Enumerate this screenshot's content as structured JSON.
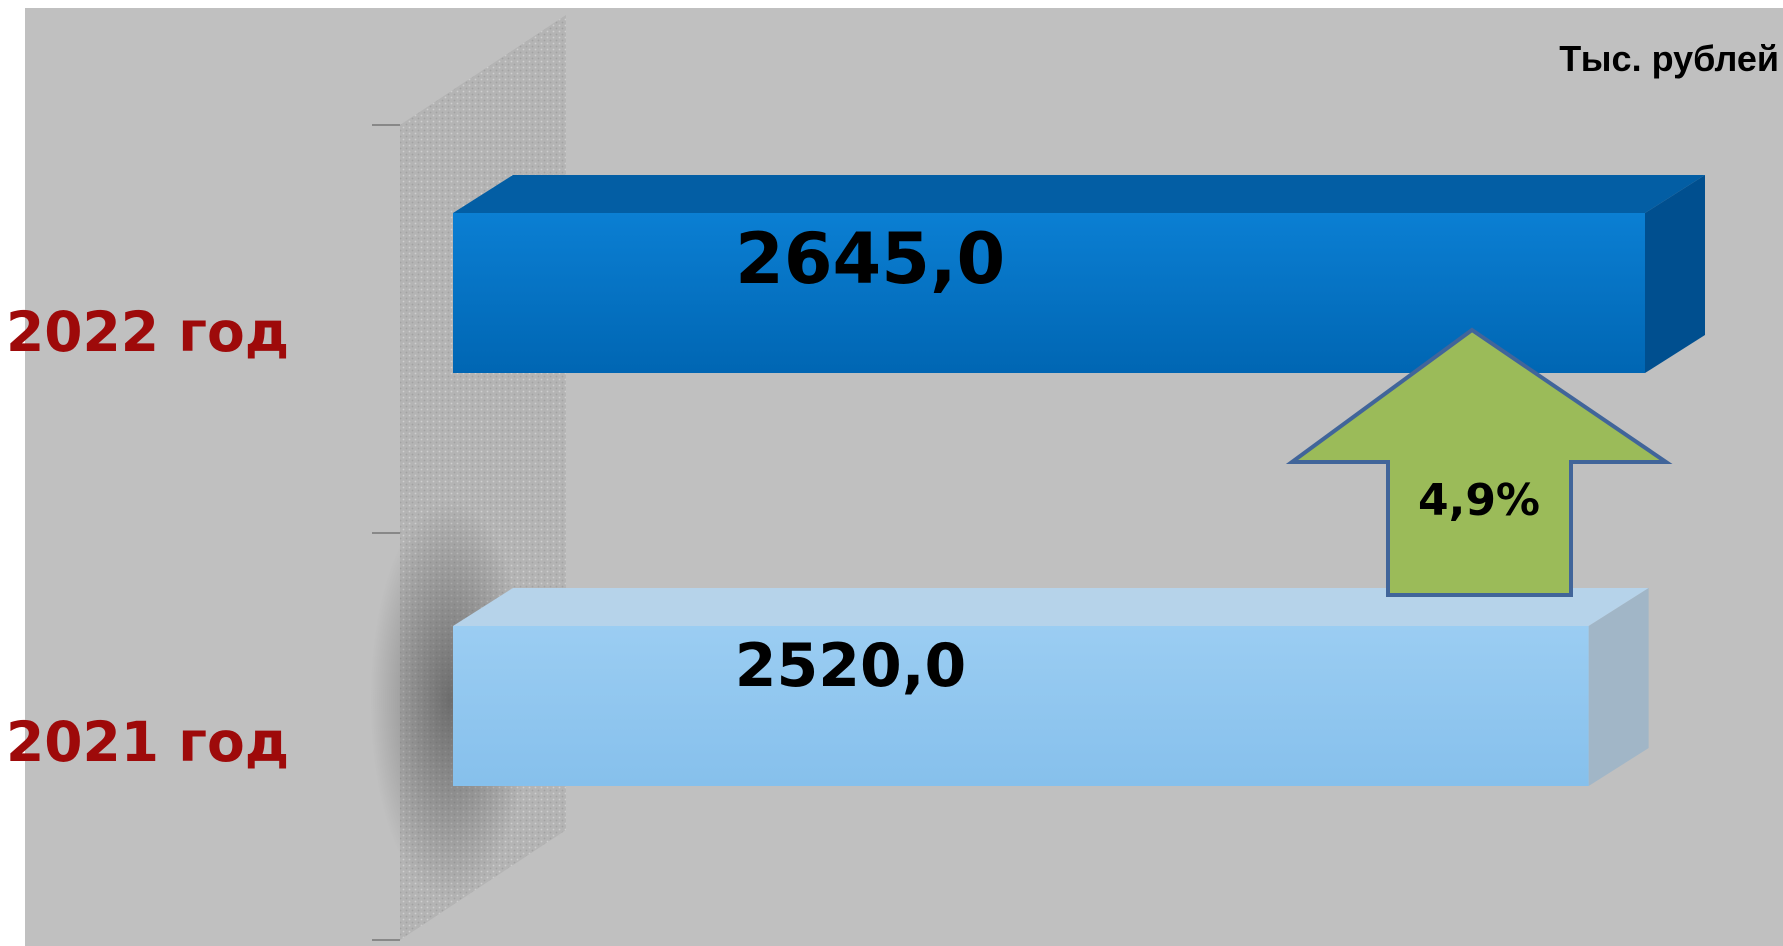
{
  "chart_data": {
    "type": "bar",
    "orientation": "horizontal",
    "categories": [
      "2022 год",
      "2021 год"
    ],
    "values": [
      2645.0,
      2520.0
    ],
    "value_labels": [
      "2645,0",
      "2520,0"
    ],
    "unit": "Тыс. рублей",
    "change_label": "4,9%",
    "colors": {
      "bar_2022": "#0070c0",
      "bar_2021": "#8ec5ee",
      "arrow": "#9bbb59",
      "category_text": "#9e0a0a",
      "plot_background": "#c0c0c0"
    },
    "grid": false,
    "legend": "none",
    "style": "3d"
  }
}
